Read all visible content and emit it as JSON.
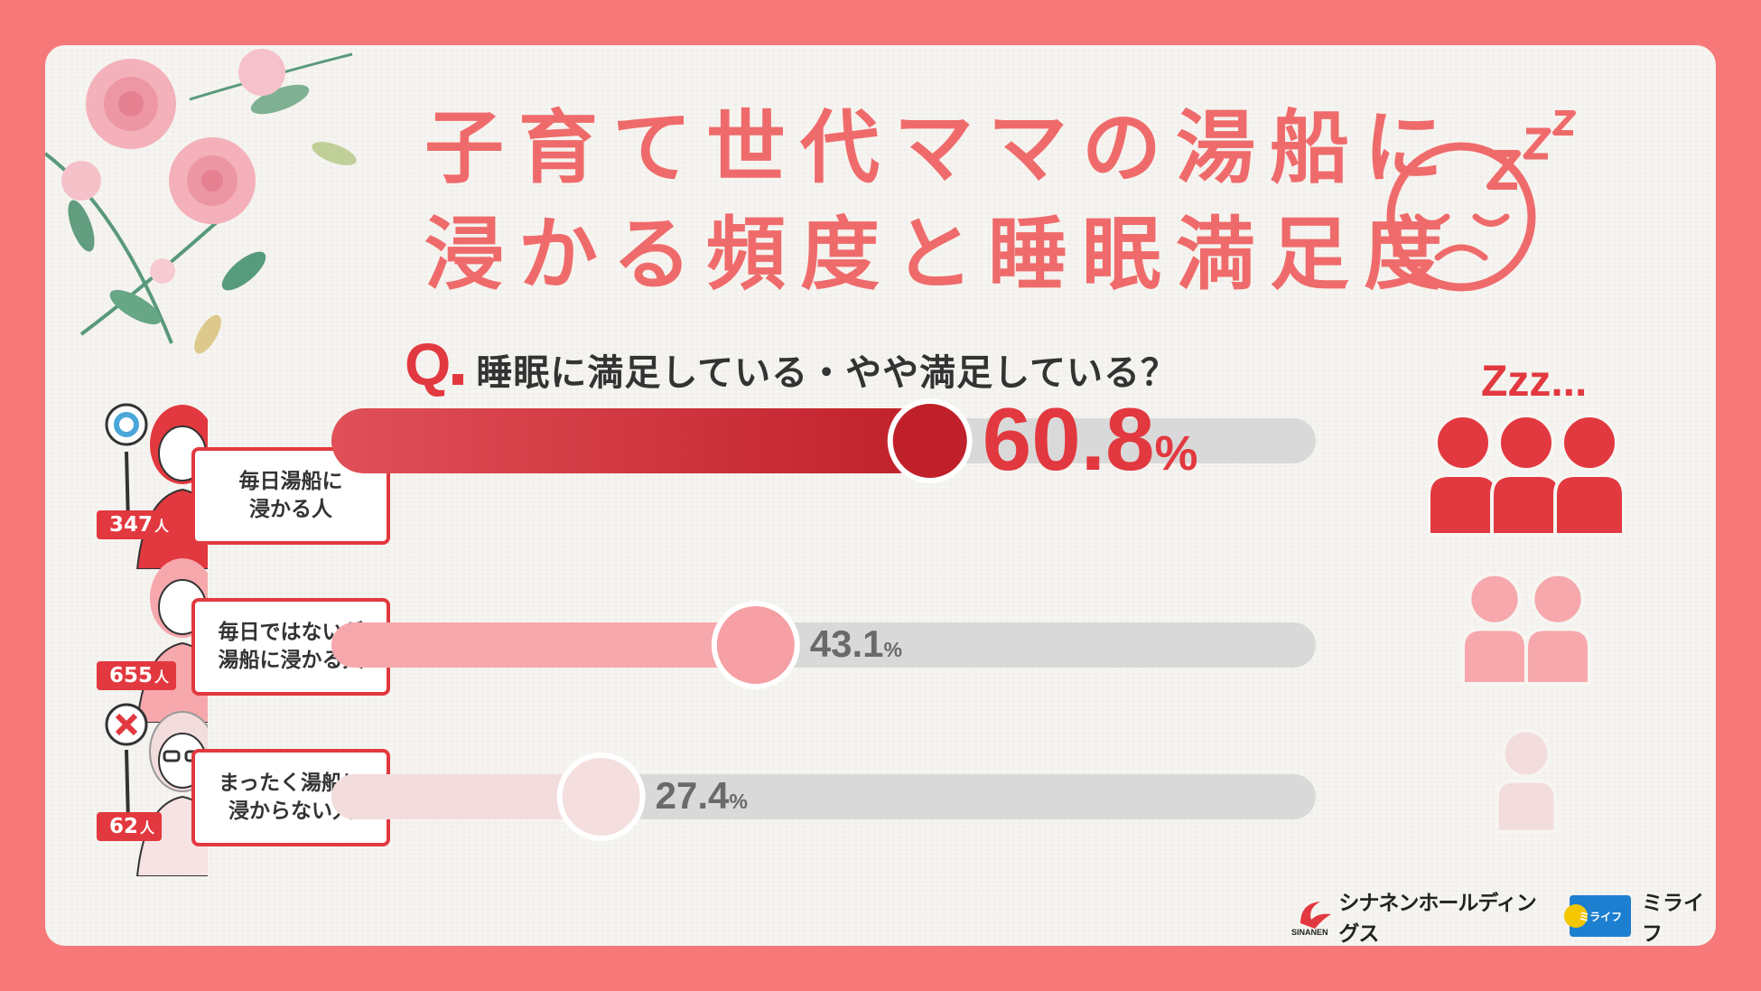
{
  "title": {
    "line1": "子育て世代ママの湯船に",
    "line2": "浸かる頻度と睡眠満足度"
  },
  "question": {
    "mark": "Q",
    "text": "睡眠に満足している・やや満足している？"
  },
  "zzz_label": "Zzz...",
  "chart_data": {
    "type": "bar",
    "orientation": "horizontal",
    "categories": [
      "毎日湯船に\n浸かる人",
      "毎日ではないが\n湯船に浸かる人",
      "まったく湯船に\n浸からない人"
    ],
    "respondents": [
      "347",
      "655",
      "62"
    ],
    "respondent_unit": "人",
    "values": [
      60.8,
      43.1,
      27.4
    ],
    "value_labels": [
      "60.8",
      "43.1",
      "27.4"
    ],
    "unit": "%",
    "xlim": [
      0,
      100
    ],
    "colors": {
      "bar_fills": [
        "#d63a41",
        "#f6a8ac",
        "#f2dcdc"
      ],
      "knobs": [
        "#c0202a",
        "#f6a0a5",
        "#f4dede"
      ],
      "track": "#d9d9d9",
      "value_text": [
        "#e2383f",
        "#6a6a6a",
        "#6a6a6a"
      ]
    }
  },
  "people_icons": {
    "counts": [
      3,
      2,
      1
    ],
    "colors": [
      "#e2383f",
      "#f6a8ac",
      "#f2dcdc"
    ]
  },
  "logos": {
    "sinanen_mark": "SINANEN",
    "sinanen_name": "シナネンホールディングス",
    "mirai_badge": "ミライフ",
    "mirai_name": "ミライフ"
  }
}
